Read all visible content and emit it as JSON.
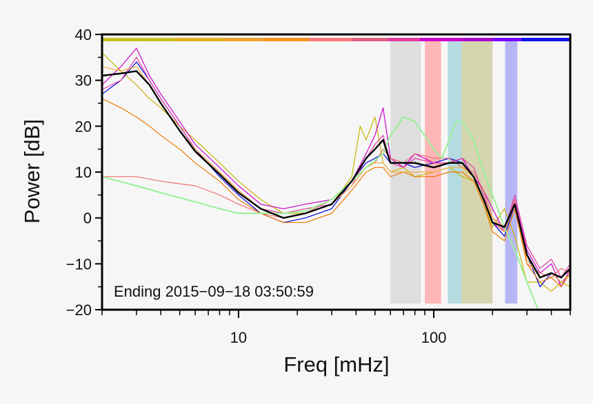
{
  "chart_data": {
    "type": "line",
    "title": "",
    "xlabel": "Freq [mHz]",
    "ylabel": "Power [dB]",
    "xscale": "log",
    "xlim": [
      2,
      500
    ],
    "ylim": [
      -20,
      40
    ],
    "xticks": [
      {
        "v": 10,
        "label": "10"
      },
      {
        "v": 100,
        "label": "100"
      }
    ],
    "yticks": [
      {
        "v": 40,
        "label": "40"
      },
      {
        "v": 30,
        "label": "30"
      },
      {
        "v": 20,
        "label": "20"
      },
      {
        "v": 10,
        "label": "10"
      },
      {
        "v": 0,
        "label": "0"
      },
      {
        "v": -10,
        "label": "−10"
      },
      {
        "v": -20,
        "label": "−20"
      }
    ],
    "annotation": "Ending 2015−09−18 03:50:59",
    "legend": "none",
    "grid": false,
    "bands": [
      {
        "x0": 60,
        "x1": 86,
        "color": "#d9d9d9"
      },
      {
        "x0": 90,
        "x1": 109,
        "color": "#ffaaaa"
      },
      {
        "x0": 118,
        "x1": 139,
        "color": "#a8d6dc"
      },
      {
        "x0": 139,
        "x1": 200,
        "color": "#cfcfa3"
      },
      {
        "x0": 232,
        "x1": 268,
        "color": "#aaaaf5"
      }
    ],
    "topbar": [
      {
        "x0": 2,
        "x1": 4.7,
        "color": "#c8c020"
      },
      {
        "x0": 4.7,
        "x1": 8.5,
        "color": "#e0b020"
      },
      {
        "x0": 8.5,
        "x1": 13.5,
        "color": "#f0a030"
      },
      {
        "x0": 13.5,
        "x1": 23,
        "color": "#ff9020"
      },
      {
        "x0": 23,
        "x1": 38,
        "color": "#ff7878"
      },
      {
        "x0": 38,
        "x1": 58,
        "color": "#e06080"
      },
      {
        "x0": 58,
        "x1": 85,
        "color": "#e23aa0"
      },
      {
        "x0": 85,
        "x1": 140,
        "color": "#cc00cc"
      },
      {
        "x0": 140,
        "x1": 200,
        "color": "#aa00cc"
      },
      {
        "x0": 200,
        "x1": 280,
        "color": "#7a00ff"
      },
      {
        "x0": 280,
        "x1": 500,
        "color": "#1010ee"
      }
    ],
    "series": [
      {
        "color": "#c8b400",
        "width": 1.2,
        "x": [
          2,
          2.5,
          3,
          3.5,
          4,
          5,
          6,
          8,
          10,
          13,
          17,
          22,
          30,
          38,
          42,
          45,
          50,
          55,
          60,
          70,
          80,
          100,
          120,
          140,
          160,
          180,
          200,
          230,
          260,
          300,
          350,
          400,
          450,
          500
        ],
        "y": [
          36,
          32,
          29,
          26,
          24,
          20,
          17,
          12,
          8,
          4,
          1,
          1,
          3,
          9,
          20,
          17,
          22,
          12,
          10,
          11,
          9,
          10,
          11,
          9,
          8,
          3,
          -2,
          2,
          -4,
          -14,
          -14,
          -16,
          -14,
          -15
        ]
      },
      {
        "color": "#cc00cc",
        "width": 1.2,
        "x": [
          2,
          2.5,
          3,
          3.5,
          4,
          5,
          6,
          8,
          10,
          13,
          17,
          22,
          30,
          38,
          45,
          50,
          55,
          60,
          70,
          80,
          100,
          120,
          140,
          160,
          180,
          200,
          230,
          260,
          300,
          350,
          400,
          450,
          500
        ],
        "y": [
          29,
          33,
          37,
          31,
          27,
          21,
          16,
          11,
          7,
          3,
          2,
          3,
          4,
          8,
          14,
          18,
          24,
          13,
          11,
          14,
          12,
          12,
          13,
          9,
          6,
          2,
          -3,
          4,
          -7,
          -12,
          -10,
          -15,
          -11
        ]
      },
      {
        "color": "#0000dd",
        "width": 1.2,
        "x": [
          2,
          2.5,
          3,
          3.5,
          4,
          5,
          6,
          8,
          10,
          13,
          17,
          22,
          30,
          38,
          45,
          50,
          55,
          60,
          70,
          80,
          100,
          120,
          140,
          160,
          180,
          200,
          230,
          260,
          300,
          350,
          400,
          450,
          500
        ],
        "y": [
          27,
          30,
          34,
          30,
          26,
          20,
          15,
          9,
          5,
          1,
          -1,
          0,
          2,
          8,
          12,
          13,
          14,
          12,
          12,
          11,
          12,
          13,
          12,
          9,
          4,
          -1,
          -4,
          3,
          -8,
          -15,
          -12,
          -14,
          -12
        ]
      },
      {
        "color": "#ee6f6f",
        "width": 1.2,
        "x": [
          2,
          3,
          4,
          6,
          8,
          10,
          13,
          17,
          22,
          30,
          38,
          45,
          50,
          55,
          60,
          70,
          80,
          100,
          120,
          140,
          160,
          180,
          200,
          230,
          260,
          300,
          350,
          400,
          450,
          500
        ],
        "y": [
          9,
          9,
          8,
          7,
          5,
          3,
          1,
          0,
          1,
          4,
          8,
          11,
          12,
          15,
          13,
          12,
          14,
          13,
          13,
          11,
          10,
          6,
          0,
          -2,
          4,
          -10,
          -12,
          -13,
          -11,
          -12
        ]
      },
      {
        "color": "#ee7700",
        "width": 1.2,
        "x": [
          2,
          2.5,
          3,
          3.5,
          4,
          5,
          6,
          8,
          10,
          13,
          17,
          22,
          30,
          38,
          45,
          50,
          55,
          60,
          70,
          80,
          100,
          120,
          140,
          160,
          180,
          200,
          230,
          260,
          300,
          350,
          400,
          450,
          500
        ],
        "y": [
          26,
          24,
          22,
          20,
          18,
          15,
          12,
          8,
          4,
          1,
          -1,
          -1,
          1,
          6,
          10,
          11,
          11,
          9,
          10,
          9,
          9,
          10,
          10,
          8,
          3,
          -3,
          -5,
          2,
          -10,
          -14,
          -13,
          -15,
          -12
        ]
      },
      {
        "color": "#e23aa0",
        "width": 1.2,
        "x": [
          2,
          2.5,
          3,
          3.5,
          4,
          5,
          6,
          8,
          10,
          13,
          17,
          22,
          30,
          38,
          45,
          50,
          55,
          60,
          70,
          80,
          100,
          120,
          140,
          160,
          180,
          200,
          230,
          260,
          300,
          350,
          400,
          450,
          500
        ],
        "y": [
          28,
          30,
          35,
          30,
          26,
          20,
          15,
          10,
          6,
          2,
          1,
          2,
          3,
          7,
          13,
          16,
          18,
          12,
          11,
          13,
          12,
          12,
          13,
          11,
          5,
          -1,
          -3,
          5,
          -6,
          -11,
          -9,
          -13,
          -10
        ]
      },
      {
        "color": "#f0b040",
        "width": 1.2,
        "x": [
          2,
          2.5,
          3,
          3.5,
          4,
          5,
          6,
          8,
          10,
          13,
          17,
          22,
          30,
          38,
          45,
          50,
          55,
          60,
          70,
          80,
          100,
          120,
          140,
          160,
          180,
          200,
          230,
          260,
          300,
          350,
          400,
          450,
          500
        ],
        "y": [
          33,
          32,
          33,
          29,
          25,
          19,
          15,
          10,
          6,
          2,
          0,
          1,
          3,
          7,
          11,
          12,
          12,
          10,
          10,
          10,
          10,
          11,
          11,
          9,
          4,
          0,
          -3,
          3,
          -9,
          -13,
          -12,
          -14,
          -12
        ]
      },
      {
        "color": "#99f099",
        "width": 2,
        "x": [
          2,
          3,
          4,
          6,
          8,
          10,
          13,
          17,
          22,
          30,
          38,
          45,
          55,
          60,
          70,
          80,
          100,
          110,
          120,
          130,
          140,
          160,
          180,
          200,
          230,
          260,
          300,
          350
        ],
        "y": [
          9,
          7,
          5.5,
          3.5,
          2,
          1,
          1,
          1,
          1.5,
          4,
          8,
          11,
          14,
          18,
          22,
          21,
          15,
          13,
          17,
          21,
          21,
          17,
          10,
          5,
          -2,
          -7,
          -14,
          -21
        ]
      },
      {
        "color": "#000000",
        "width": 2.4,
        "x": [
          2,
          2.5,
          3,
          3.5,
          4,
          5,
          6,
          8,
          10,
          13,
          17,
          22,
          30,
          38,
          45,
          50,
          55,
          60,
          70,
          80,
          100,
          120,
          140,
          160,
          180,
          200,
          230,
          260,
          300,
          350,
          400,
          450,
          500
        ],
        "y": [
          31,
          31.5,
          32,
          29,
          25,
          19,
          14.5,
          9.5,
          5.5,
          2,
          0,
          1,
          3,
          8,
          13,
          15,
          17,
          12,
          12,
          12,
          11,
          12,
          12,
          9,
          4,
          -1,
          -2,
          3,
          -8,
          -13,
          -12,
          -13,
          -11
        ]
      }
    ]
  }
}
